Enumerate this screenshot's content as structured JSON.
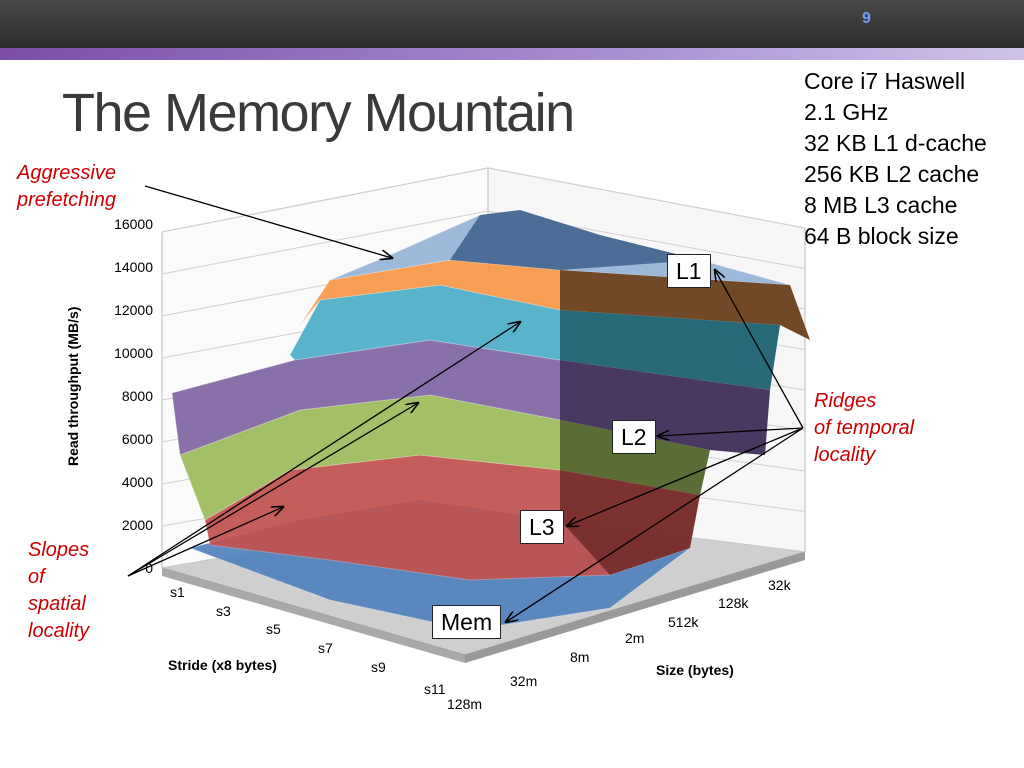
{
  "slide": {
    "number": "9",
    "title": "The Memory Mountain"
  },
  "specs": [
    "Core i7 Haswell",
    "2.1 GHz",
    "32 KB L1 d-cache",
    "256 KB L2 cache",
    "8 MB L3 cache",
    "64 B block size"
  ],
  "annotations": {
    "prefetch": [
      "Aggressive",
      "prefetching"
    ],
    "ridges": [
      "Ridges",
      "of temporal",
      "locality"
    ],
    "slopes": [
      "Slopes",
      "of",
      "spatial",
      "locality"
    ]
  },
  "labels": {
    "l1": "L1",
    "l2": "L2",
    "l3": "L3",
    "mem": "Mem"
  },
  "colors": {
    "accent": "#7b4fa8",
    "annotation": "#cc0000"
  },
  "chart_data": {
    "type": "surface",
    "ylabel": "Read throughput (MB/s)",
    "xlabel": "Stride (x8 bytes)",
    "zlabel": "Size (bytes)",
    "yticks": [
      "0",
      "2000",
      "4000",
      "6000",
      "8000",
      "10000",
      "12000",
      "14000",
      "16000"
    ],
    "ylim": [
      0,
      16000
    ],
    "strides": [
      "s1",
      "s3",
      "s5",
      "s7",
      "s9",
      "s11"
    ],
    "sizes": [
      "128m",
      "32m",
      "8m",
      "2m",
      "512k",
      "128k",
      "32k"
    ],
    "band_colors": [
      "#4f81bd",
      "#c0504d",
      "#9bbb59",
      "#8064a2",
      "#4bacc6",
      "#f79646",
      "#95b3d7"
    ],
    "approx_throughput_mbps": {
      "s1": [
        5000,
        7000,
        8000,
        12000,
        13000,
        14500,
        15500
      ],
      "s11": [
        1500,
        2500,
        3000,
        6000,
        7500,
        10000,
        12000
      ]
    }
  }
}
